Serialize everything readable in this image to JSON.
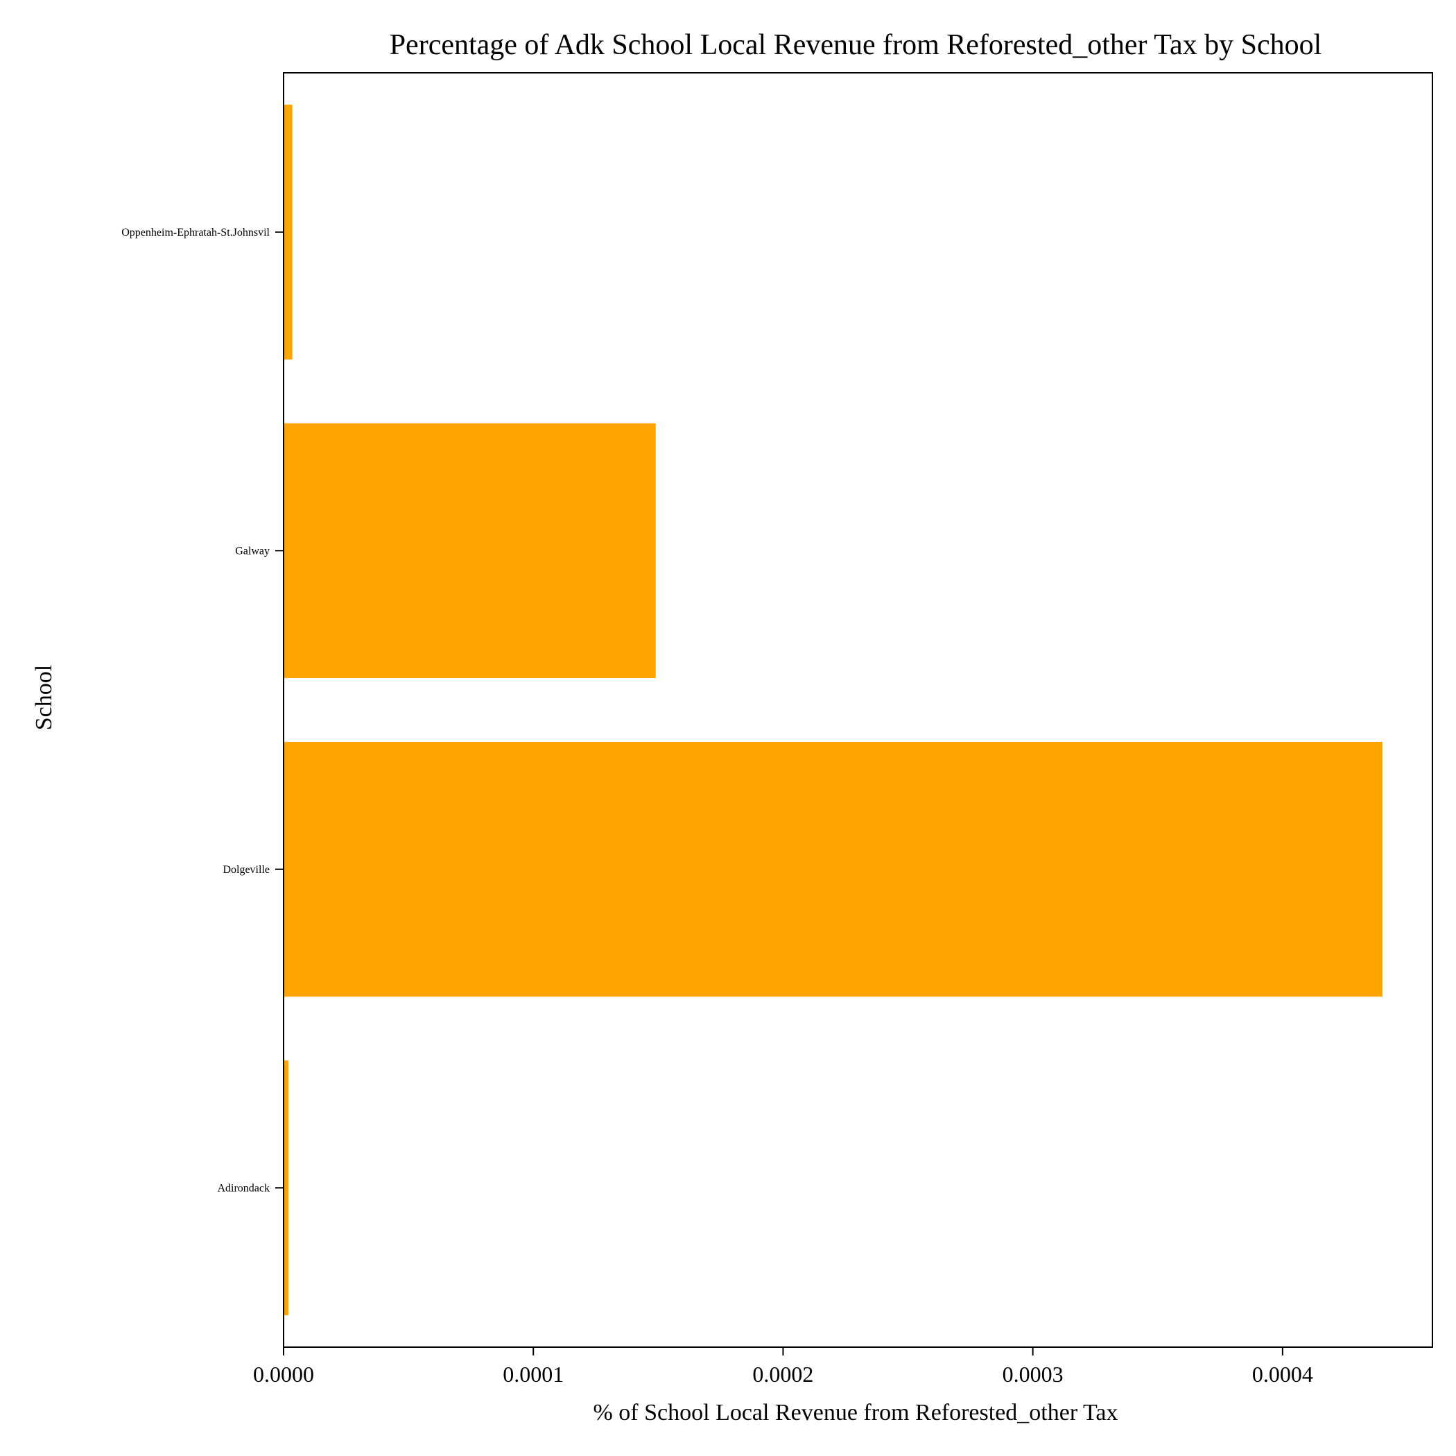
{
  "chart_data": {
    "type": "bar",
    "orientation": "horizontal",
    "title": "Percentage of Adk School Local Revenue from Reforested_other Tax by School",
    "xlabel": "% of School Local Revenue from Reforested_other Tax",
    "ylabel": "School",
    "categories": [
      "Adirondack",
      "Dolgeville",
      "Galway",
      "Oppenheim-Ephratah-St.Johnsvil"
    ],
    "values": [
      2e-06,
      0.00044,
      0.000149,
      3.5e-06
    ],
    "xlim": [
      0,
      0.00046
    ],
    "xticks": [
      0.0,
      0.0001,
      0.0002,
      0.0003,
      0.0004
    ],
    "xtick_labels": [
      "0.0000",
      "0.0001",
      "0.0002",
      "0.0003",
      "0.0004"
    ],
    "grid": false,
    "bar_color": "#ffa500"
  }
}
